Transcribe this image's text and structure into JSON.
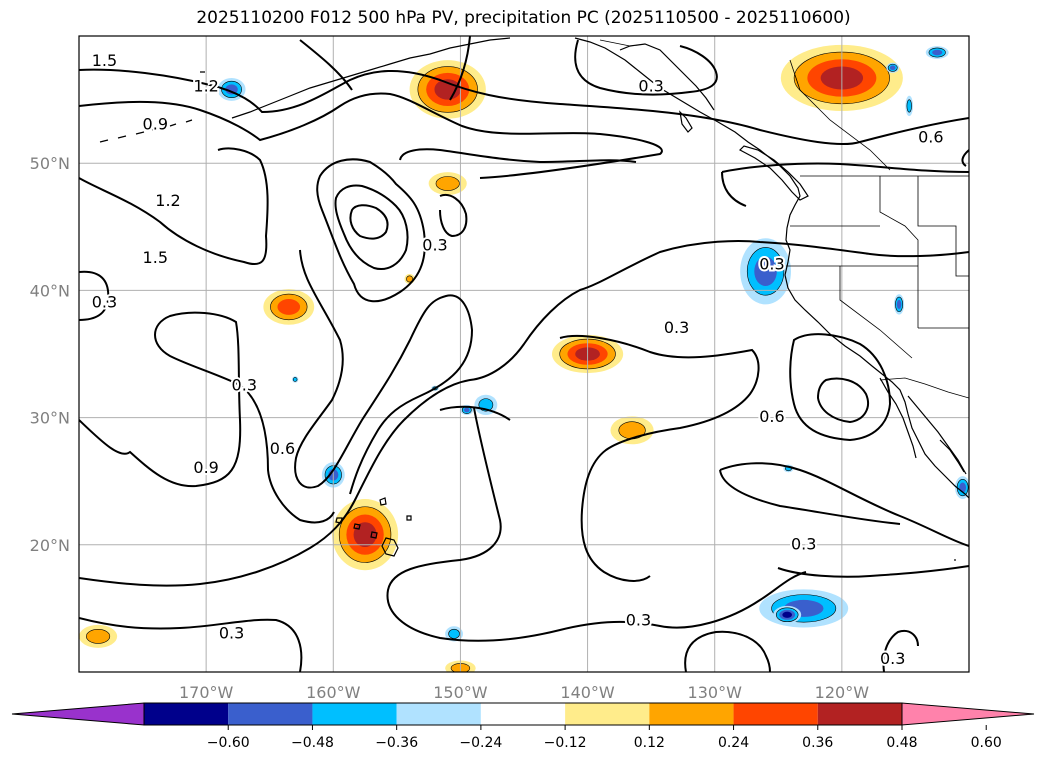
{
  "title": "2025110200 F012 500 hPa PV, precipitation PC (2025110500 - 2025110600)",
  "lat_labels": [
    {
      "lat": 50,
      "text": "50°N"
    },
    {
      "lat": 40,
      "text": "40°N"
    },
    {
      "lat": 30,
      "text": "30°N"
    },
    {
      "lat": 20,
      "text": "20°N"
    }
  ],
  "lon_labels": [
    {
      "lon": -170,
      "text": "170°W"
    },
    {
      "lon": -160,
      "text": "160°W"
    },
    {
      "lon": -150,
      "text": "150°W"
    },
    {
      "lon": -140,
      "text": "140°W"
    },
    {
      "lon": -130,
      "text": "130°W"
    },
    {
      "lon": -120,
      "text": "120°W"
    }
  ],
  "extent": {
    "lon_min": -180,
    "lon_max": -110,
    "lat_min": 10,
    "lat_max": 60
  },
  "contour_labels": [
    {
      "text": "1.5",
      "lon": -178,
      "lat": 58
    },
    {
      "text": "1.2",
      "lon": -170,
      "lat": 56
    },
    {
      "text": "0.9",
      "lon": -174,
      "lat": 53
    },
    {
      "text": "0.3",
      "lon": -135,
      "lat": 56
    },
    {
      "text": "0.6",
      "lon": -113,
      "lat": 52
    },
    {
      "text": "1.2",
      "lon": -173,
      "lat": 47
    },
    {
      "text": "1.5",
      "lon": -174,
      "lat": 42.5
    },
    {
      "text": "0.3",
      "lon": -152,
      "lat": 43.5
    },
    {
      "text": "0.3",
      "lon": -125.5,
      "lat": 42
    },
    {
      "text": "0.3",
      "lon": -178,
      "lat": 39
    },
    {
      "text": "0.3",
      "lon": -133,
      "lat": 37
    },
    {
      "text": "0.3",
      "lon": -167,
      "lat": 32.5
    },
    {
      "text": "0.6",
      "lon": -125.5,
      "lat": 30
    },
    {
      "text": "0.6",
      "lon": -164,
      "lat": 27.5
    },
    {
      "text": "0.9",
      "lon": -170,
      "lat": 26
    },
    {
      "text": "0.3",
      "lon": -123,
      "lat": 20
    },
    {
      "text": "0.3",
      "lon": -168,
      "lat": 13
    },
    {
      "text": "0.3",
      "lon": -136,
      "lat": 14
    },
    {
      "text": "0.3",
      "lon": -116,
      "lat": 11
    }
  ],
  "precip_blobs": [
    {
      "lon": -163.5,
      "lat": 38.7,
      "rx": 2.0,
      "ry": 1.4,
      "level": 0.36
    },
    {
      "lon": -157.5,
      "lat": 20.8,
      "rx": 2.6,
      "ry": 2.8,
      "level": 0.48
    },
    {
      "lon": -151.0,
      "lat": 55.8,
      "rx": 3.0,
      "ry": 2.3,
      "level": 0.48
    },
    {
      "lon": -151.0,
      "lat": 48.4,
      "rx": 1.5,
      "ry": 0.9,
      "level": 0.24
    },
    {
      "lon": -140.0,
      "lat": 35.0,
      "rx": 2.8,
      "ry": 1.5,
      "level": 0.48
    },
    {
      "lon": -136.5,
      "lat": 29.0,
      "rx": 1.7,
      "ry": 1.1,
      "level": 0.24
    },
    {
      "lon": -120.0,
      "lat": 56.7,
      "rx": 4.8,
      "ry": 2.6,
      "level": 0.48
    },
    {
      "lon": -150.0,
      "lat": 10.3,
      "rx": 1.2,
      "ry": 0.6,
      "level": 0.24
    },
    {
      "lon": -178.5,
      "lat": 12.8,
      "rx": 1.5,
      "ry": 0.9,
      "level": 0.24
    },
    {
      "lon": -168.0,
      "lat": 55.8,
      "rx": 1.1,
      "ry": 0.9,
      "level": -0.36
    },
    {
      "lon": -154.0,
      "lat": 40.9,
      "rx": 0.4,
      "ry": 0.4,
      "level": 0.24
    },
    {
      "lon": -126.0,
      "lat": 41.5,
      "rx": 2.0,
      "ry": 2.6,
      "level": -0.36
    },
    {
      "lon": -148.0,
      "lat": 31.0,
      "rx": 0.9,
      "ry": 0.8,
      "level": -0.24
    },
    {
      "lon": -160.0,
      "lat": 25.5,
      "rx": 0.9,
      "ry": 1.0,
      "level": -0.36
    },
    {
      "lon": -123.0,
      "lat": 15.0,
      "rx": 3.5,
      "ry": 1.5,
      "level": -0.36
    },
    {
      "lon": -124.3,
      "lat": 14.5,
      "rx": 1.1,
      "ry": 0.7,
      "level": -0.48
    },
    {
      "lon": -150.5,
      "lat": 13.0,
      "rx": 0.7,
      "ry": 0.6,
      "level": -0.24
    },
    {
      "lon": -110.5,
      "lat": 24.5,
      "rx": 0.6,
      "ry": 0.9,
      "level": -0.36
    },
    {
      "lon": -115.5,
      "lat": 38.9,
      "rx": 0.4,
      "ry": 0.8,
      "level": -0.36
    },
    {
      "lon": -116.0,
      "lat": 57.5,
      "rx": 0.5,
      "ry": 0.4,
      "level": -0.36
    },
    {
      "lon": -112.5,
      "lat": 58.7,
      "rx": 0.9,
      "ry": 0.5,
      "level": -0.36
    },
    {
      "lon": -163.0,
      "lat": 33.0,
      "rx": 0.25,
      "ry": 0.25,
      "level": -0.24
    },
    {
      "lon": -152.0,
      "lat": 32.3,
      "rx": 0.3,
      "ry": 0.2,
      "level": -0.24
    },
    {
      "lon": -149.5,
      "lat": 30.6,
      "rx": 0.5,
      "ry": 0.4,
      "level": -0.36
    },
    {
      "lon": -114.7,
      "lat": 54.5,
      "rx": 0.3,
      "ry": 0.8,
      "level": -0.24
    },
    {
      "lon": -124.2,
      "lat": 26.0,
      "rx": 0.4,
      "ry": 0.3,
      "level": -0.24
    }
  ],
  "colorbar": {
    "ticks": [
      "−0.60",
      "−0.48",
      "−0.36",
      "−0.24",
      "−0.12",
      "0.12",
      "0.24",
      "0.36",
      "0.48",
      "0.60"
    ],
    "colors": [
      "#9932cc",
      "#00008b",
      "#3a5fcd",
      "#00bfff",
      "#b0e2ff",
      "#ffffff",
      "#ffec8b",
      "#ffa500",
      "#ff4500",
      "#b22222",
      "#ff82ab"
    ],
    "extend": "both"
  },
  "colors": {
    "contour": "#000000",
    "grid": "#b0b0b0",
    "lat_lon_label": "#808080"
  }
}
